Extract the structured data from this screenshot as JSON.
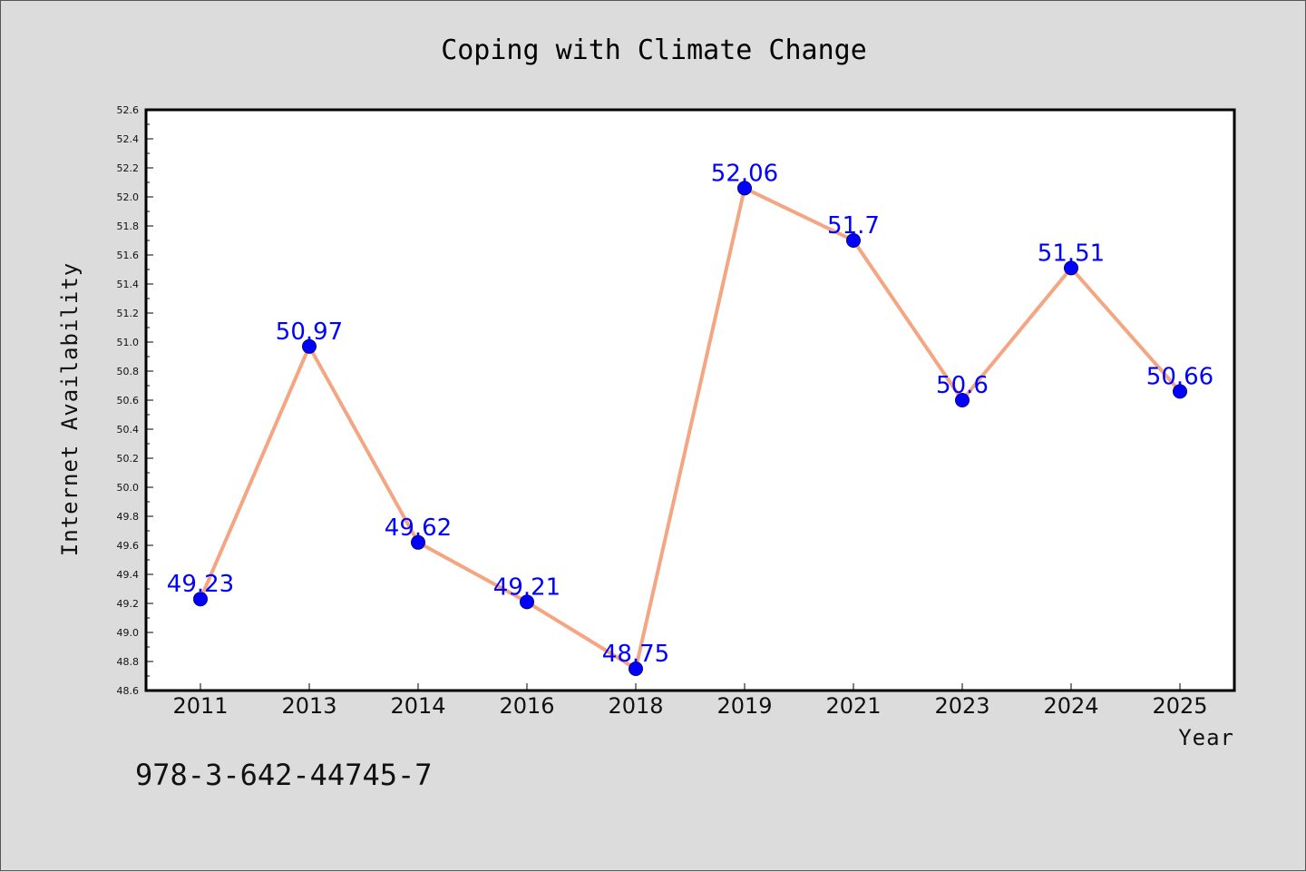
{
  "chart_data": {
    "type": "line",
    "title": "Coping with Climate Change",
    "xlabel": "Year",
    "ylabel": "Internet Availability",
    "categories": [
      "2011",
      "2013",
      "2014",
      "2016",
      "2018",
      "2019",
      "2021",
      "2023",
      "2024",
      "2025"
    ],
    "series": [
      {
        "values": [
          49.23,
          50.97,
          49.62,
          49.21,
          48.75,
          52.06,
          51.7,
          50.6,
          51.51,
          50.66
        ],
        "labels": [
          "49.23",
          "50.97",
          "49.62",
          "49.21",
          "48.75",
          "52.06",
          "51.7",
          "50.6",
          "51.51",
          "50.66"
        ],
        "line_color": "#f4a582",
        "marker_color": "#0000ff"
      }
    ],
    "ylim": [
      48.6,
      52.6
    ],
    "yticks": [
      "48.6",
      "48.8",
      "49.0",
      "49.2",
      "49.4",
      "49.6",
      "49.8",
      "50.0",
      "50.2",
      "50.4",
      "50.6",
      "50.8",
      "51.0",
      "51.2",
      "51.4",
      "51.6",
      "51.8",
      "52.0",
      "52.2",
      "52.4",
      "52.6"
    ],
    "grid": false,
    "legend": "none"
  },
  "footer": {
    "isbn": "978-3-642-44745-7"
  },
  "colors": {
    "background": "#dcdcdc",
    "plot_background": "#ffffff",
    "label_color": "#0000ff"
  }
}
